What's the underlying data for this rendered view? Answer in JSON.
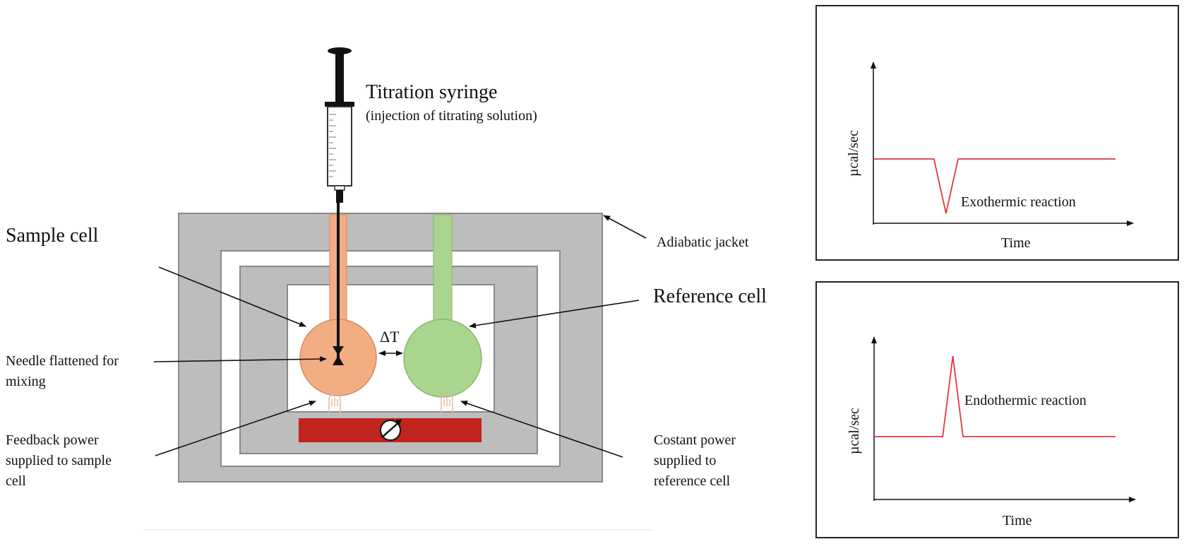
{
  "diagram": {
    "syringe": {
      "title": "Titration syringe",
      "subtitle": "(injection of titrating solution)"
    },
    "labels": {
      "sample_cell": "Sample cell",
      "reference_cell": "Reference cell",
      "adiabatic_jacket": "Adiabatic jacket",
      "needle_line1": "Needle flattened for",
      "needle_line2": "mixing",
      "feedback_line1": "Feedback power",
      "feedback_line2": "supplied to sample",
      "feedback_line3": "cell",
      "constant_line1": "Costant power",
      "constant_line2": "supplied to",
      "constant_line3": "reference cell",
      "delta_t": "ΔT"
    },
    "colors": {
      "jacket": "#bdbdbd",
      "jacket_stroke": "#8a8a8a",
      "sample_cell": "#f3ad83",
      "reference_cell": "#a9d58e",
      "heater": "#c1231d",
      "trace": "#e8383a"
    }
  },
  "chart_data": [
    {
      "type": "line",
      "title": "Exothermic reaction",
      "xlabel": "Time",
      "ylabel": "µcal/sec",
      "x": [
        0,
        0.25,
        0.3,
        0.35,
        1.0
      ],
      "y": [
        0,
        0,
        -1,
        0,
        0
      ]
    },
    {
      "type": "line",
      "title": "Endothermic reaction",
      "xlabel": "Time",
      "ylabel": "µcal/sec",
      "x": [
        0,
        0.27,
        0.31,
        0.35,
        0.95
      ],
      "y": [
        0,
        0,
        1,
        0,
        0
      ]
    }
  ]
}
